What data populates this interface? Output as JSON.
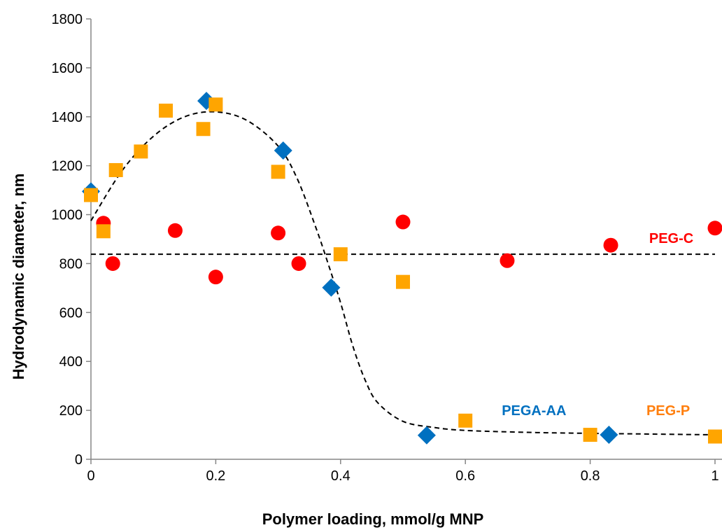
{
  "chart_data": {
    "type": "scatter",
    "xlabel": "Polymer loading, mmol/g MNP",
    "ylabel": "Hydrodynamic diameter, nm",
    "xlim": [
      0,
      1
    ],
    "ylim": [
      0,
      1800
    ],
    "x_ticks": [
      "0",
      "0.2",
      "0.4",
      "0.6",
      "0.8",
      "1"
    ],
    "y_ticks": [
      "0",
      "200",
      "400",
      "600",
      "800",
      "1000",
      "1200",
      "1400",
      "1600",
      "1800"
    ],
    "grid": false,
    "series": [
      {
        "name": "PEG-C",
        "marker": "circle",
        "color": "#ff0000",
        "x": [
          0.02,
          0.035,
          0.135,
          0.2,
          0.3,
          0.333,
          0.5,
          0.667,
          0.833,
          1.0
        ],
        "y": [
          965,
          800,
          935,
          745,
          925,
          800,
          970,
          812,
          875,
          945
        ]
      },
      {
        "name": "PEGA-AA",
        "marker": "diamond",
        "color": "#0070c0",
        "x": [
          0.0,
          0.185,
          0.308,
          0.385,
          0.538,
          0.83
        ],
        "y": [
          1095,
          1465,
          1262,
          702,
          98,
          100
        ]
      },
      {
        "name": "PEG-P",
        "marker": "square",
        "color": "#ffa500",
        "x": [
          0.0,
          0.02,
          0.04,
          0.08,
          0.12,
          0.18,
          0.2,
          0.3,
          0.4,
          0.5,
          0.6,
          0.8,
          1.0
        ],
        "y": [
          1080,
          932,
          1182,
          1258,
          1425,
          1350,
          1450,
          1175,
          838,
          725,
          158,
          100,
          93
        ]
      }
    ],
    "trendlines": [
      {
        "style": "dashed",
        "color": "#000000",
        "x": [
          0.0,
          0.05,
          0.1,
          0.15,
          0.2,
          0.25,
          0.3,
          0.33,
          0.36,
          0.38,
          0.4,
          0.42,
          0.44,
          0.46,
          0.5,
          0.55,
          0.6,
          0.7,
          0.8,
          0.9,
          1.0
        ],
        "y": [
          975,
          1180,
          1320,
          1400,
          1420,
          1385,
          1280,
          1150,
          950,
          800,
          640,
          460,
          320,
          230,
          155,
          130,
          118,
          110,
          106,
          103,
          100
        ]
      },
      {
        "style": "dashed",
        "color": "#000000",
        "x": [
          0.0,
          1.0
        ],
        "y": [
          838,
          838
        ]
      }
    ],
    "annotations": [
      {
        "text": "PEG-C",
        "color": "#ff0000",
        "x": 0.93,
        "y": 905
      },
      {
        "text": "PEGA-AA",
        "color": "#0070c0",
        "x": 0.71,
        "y": 200
      },
      {
        "text": "PEG-P",
        "color": "#ff7f0e",
        "x": 0.925,
        "y": 200
      }
    ]
  }
}
